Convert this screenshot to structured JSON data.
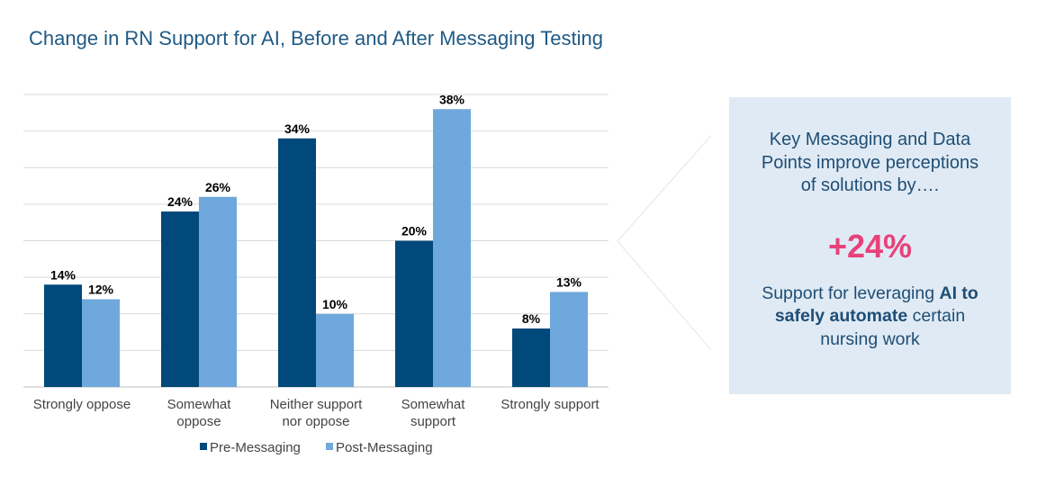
{
  "colors": {
    "pre": "#00497a",
    "post": "#6fa8dc",
    "title": "#1f5a85",
    "grid": "#d9d9d9",
    "callout_bg": "#dfeaf4",
    "accent": "#e8417a"
  },
  "chart_data": {
    "type": "bar",
    "title": "Change in RN Support for AI, Before and After Messaging Testing",
    "categories": [
      [
        "Strongly oppose"
      ],
      [
        "Somewhat",
        "oppose"
      ],
      [
        "Neither support",
        "nor oppose"
      ],
      [
        "Somewhat",
        "support"
      ],
      [
        "Strongly support"
      ]
    ],
    "series": [
      {
        "name": "Pre-Messaging",
        "values": [
          14,
          24,
          34,
          20,
          8
        ],
        "labels": [
          "14%",
          "24%",
          "34%",
          "20%",
          "8%"
        ]
      },
      {
        "name": "Post-Messaging",
        "values": [
          12,
          26,
          10,
          38,
          13
        ],
        "labels": [
          "12%",
          "26%",
          "10%",
          "38%",
          "13%"
        ]
      }
    ],
    "ylim": [
      0,
      40
    ],
    "grid": true,
    "legend": "bottom"
  },
  "callout": {
    "heading": "Key Messaging and Data Points improve perceptions of solutions by….",
    "figure": "+24%",
    "body_pre": "Support for leveraging ",
    "body_bold": "AI to safely automate",
    "body_post": " certain nursing work"
  }
}
